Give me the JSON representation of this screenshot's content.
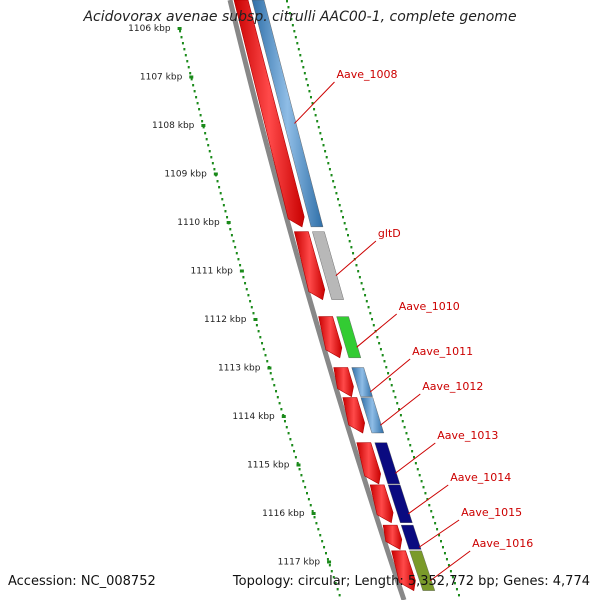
{
  "title": "Acidovorax avenae subsp. citrulli AAC00-1, complete genome",
  "accession_text": "Accession: NC_008752",
  "summary_text": "Topology: circular; Length: 5,352,772 bp; Genes: 4,774",
  "scale": {
    "unit": "kbp",
    "ticks": [
      {
        "value": 1106,
        "label": "1106 kbp"
      },
      {
        "value": 1107,
        "label": "1107 kbp"
      },
      {
        "value": 1108,
        "label": "1108 kbp"
      },
      {
        "value": 1109,
        "label": "1109 kbp"
      },
      {
        "value": 1110,
        "label": "1110 kbp"
      },
      {
        "value": 1111,
        "label": "1111 kbp"
      },
      {
        "value": 1112,
        "label": "1112 kbp"
      },
      {
        "value": 1113,
        "label": "1113 kbp"
      },
      {
        "value": 1114,
        "label": "1114 kbp"
      },
      {
        "value": 1115,
        "label": "1115 kbp"
      },
      {
        "value": 1116,
        "label": "1116 kbp"
      },
      {
        "value": 1117,
        "label": "1117 kbp"
      }
    ]
  },
  "colors": {
    "cds": "#e00000",
    "backbone": "#888888",
    "tick": "#1a8a1a",
    "label": "#cc0000"
  },
  "genes": [
    {
      "name": "Aave_1008",
      "start_kbp": 1105.4,
      "end_kbp": 1110.1,
      "cog_color": "#3f7fb8"
    },
    {
      "name": "gltD",
      "start_kbp": 1110.2,
      "end_kbp": 1111.6,
      "cog_color": "#b8b8b8"
    },
    {
      "name": "Aave_1010",
      "start_kbp": 1111.95,
      "end_kbp": 1112.8,
      "cog_color": "#33cc33"
    },
    {
      "name": "Aave_1011",
      "start_kbp": 1113.0,
      "end_kbp": 1113.6,
      "cog_color": "#3f7fb8"
    },
    {
      "name": "Aave_1012",
      "start_kbp": 1113.62,
      "end_kbp": 1114.35,
      "cog_color": "#3f7fb8"
    },
    {
      "name": "Aave_1013",
      "start_kbp": 1114.55,
      "end_kbp": 1115.4,
      "cog_color": "#0a0a80"
    },
    {
      "name": "Aave_1014",
      "start_kbp": 1115.42,
      "end_kbp": 1116.2,
      "cog_color": "#0a0a80"
    },
    {
      "name": "Aave_1015",
      "start_kbp": 1116.25,
      "end_kbp": 1116.75,
      "cog_color": "#0a0a80"
    },
    {
      "name": "Aave_1016",
      "start_kbp": 1116.78,
      "end_kbp": 1117.6,
      "cog_color": "#7a9a2a"
    }
  ]
}
